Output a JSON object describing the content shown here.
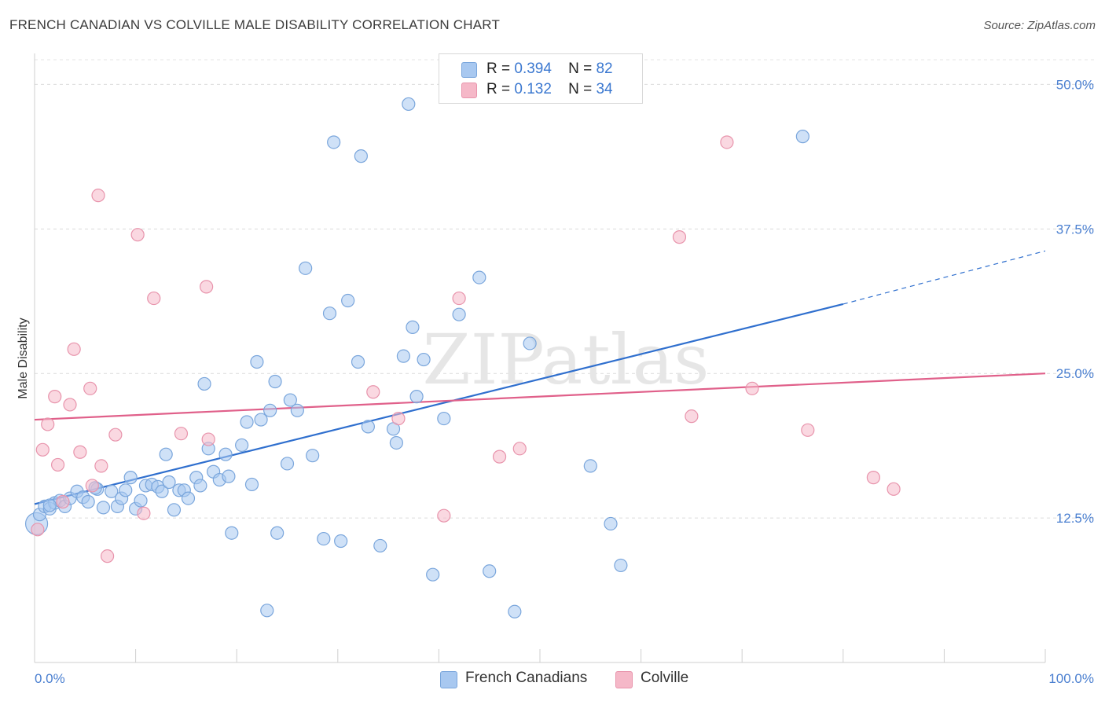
{
  "title": "FRENCH CANADIAN VS COLVILLE MALE DISABILITY CORRELATION CHART",
  "source": "Source: ZipAtlas.com",
  "watermark": "ZIPatlas",
  "legend": {
    "rows": [
      {
        "r_label": "R =",
        "r_value": "0.394",
        "n_label": "N =",
        "n_value": "82",
        "color": "#a8c8f0"
      },
      {
        "r_label": "R =",
        "r_value": " 0.132",
        "n_label": "N =",
        "n_value": "34",
        "color": "#f5b8c8"
      }
    ]
  },
  "bottom_legend": {
    "french": "French Canadians",
    "colville": "Colville"
  },
  "chart_data": {
    "type": "scatter",
    "title": "FRENCH CANADIAN VS COLVILLE MALE DISABILITY CORRELATION CHART",
    "xlabel": "",
    "ylabel": "Male Disability",
    "xlim": [
      0,
      100
    ],
    "ylim": [
      0,
      52
    ],
    "x_tick_labels": [
      "0.0%",
      "100.0%"
    ],
    "y_ticks": [
      12.5,
      25.0,
      37.5,
      50.0
    ],
    "y_tick_labels": [
      "12.5%",
      "25.0%",
      "37.5%",
      "50.0%"
    ],
    "grid": "horizontal dashed",
    "legend_placement": "top-center",
    "series": [
      {
        "name": "French Canadians",
        "color": "#a8c8f0",
        "stroke": "#7aa6dc",
        "trend": {
          "x0": 0,
          "y0": 13.7,
          "x1": 80,
          "y1": 31.0,
          "dashed_to_x": 100,
          "dashed_to_y": 35.6,
          "color": "#2f6fce"
        },
        "points": [
          [
            0.2,
            12.0
          ],
          [
            0.5,
            12.8
          ],
          [
            1.0,
            13.5
          ],
          [
            1.5,
            13.3
          ],
          [
            2.0,
            13.8
          ],
          [
            2.5,
            14.0
          ],
          [
            3.0,
            13.5
          ],
          [
            3.5,
            14.2
          ],
          [
            4.2,
            14.8
          ],
          [
            4.8,
            14.3
          ],
          [
            5.3,
            13.9
          ],
          [
            6.2,
            15.0
          ],
          [
            6.8,
            13.4
          ],
          [
            7.6,
            14.8
          ],
          [
            8.2,
            13.5
          ],
          [
            8.6,
            14.2
          ],
          [
            9.0,
            14.9
          ],
          [
            9.5,
            16.0
          ],
          [
            10.0,
            13.3
          ],
          [
            10.5,
            14.0
          ],
          [
            11.0,
            15.3
          ],
          [
            11.6,
            15.4
          ],
          [
            12.2,
            15.2
          ],
          [
            12.6,
            14.8
          ],
          [
            13.0,
            18.0
          ],
          [
            13.3,
            15.6
          ],
          [
            13.8,
            13.2
          ],
          [
            14.3,
            14.9
          ],
          [
            14.8,
            14.9
          ],
          [
            15.2,
            14.2
          ],
          [
            16.0,
            16.0
          ],
          [
            16.4,
            15.3
          ],
          [
            16.8,
            24.1
          ],
          [
            17.2,
            18.5
          ],
          [
            17.7,
            16.5
          ],
          [
            18.3,
            15.8
          ],
          [
            18.9,
            18.0
          ],
          [
            19.2,
            16.1
          ],
          [
            20.5,
            18.8
          ],
          [
            21.0,
            20.8
          ],
          [
            21.5,
            15.4
          ],
          [
            22.0,
            26.0
          ],
          [
            22.4,
            21.0
          ],
          [
            23.3,
            21.8
          ],
          [
            23.8,
            24.3
          ],
          [
            25.0,
            17.2
          ],
          [
            25.3,
            22.7
          ],
          [
            26.0,
            21.8
          ],
          [
            26.8,
            34.1
          ],
          [
            27.5,
            17.9
          ],
          [
            28.6,
            10.7
          ],
          [
            29.2,
            30.2
          ],
          [
            29.6,
            45.0
          ],
          [
            30.3,
            10.5
          ],
          [
            31.0,
            31.3
          ],
          [
            32.0,
            26.0
          ],
          [
            32.3,
            43.8
          ],
          [
            33.0,
            20.4
          ],
          [
            34.2,
            10.1
          ],
          [
            35.5,
            20.2
          ],
          [
            35.8,
            19.0
          ],
          [
            36.5,
            26.5
          ],
          [
            37.0,
            48.3
          ],
          [
            37.4,
            29.0
          ],
          [
            37.8,
            23.0
          ],
          [
            38.5,
            26.2
          ],
          [
            39.4,
            7.6
          ],
          [
            40.5,
            21.1
          ],
          [
            42.0,
            30.1
          ],
          [
            44.0,
            33.3
          ],
          [
            45.0,
            7.9
          ],
          [
            47.5,
            4.4
          ],
          [
            49.0,
            27.6
          ],
          [
            55.0,
            17.0
          ],
          [
            57.0,
            12.0
          ],
          [
            58.0,
            8.4
          ],
          [
            76.0,
            45.5
          ],
          [
            23.0,
            4.5
          ],
          [
            19.5,
            11.2
          ],
          [
            24.0,
            11.2
          ],
          [
            1.5,
            13.6
          ],
          [
            6.0,
            15.1
          ]
        ]
      },
      {
        "name": "Colville",
        "color": "#f5b8c8",
        "stroke": "#e894ac",
        "trend": {
          "x0": 0,
          "y0": 21.0,
          "x1": 100,
          "y1": 25.0,
          "color": "#e0608a"
        },
        "points": [
          [
            0.3,
            11.5
          ],
          [
            0.8,
            18.4
          ],
          [
            1.3,
            20.6
          ],
          [
            2.0,
            23.0
          ],
          [
            2.3,
            17.1
          ],
          [
            2.8,
            13.9
          ],
          [
            3.5,
            22.3
          ],
          [
            3.9,
            27.1
          ],
          [
            4.5,
            18.2
          ],
          [
            5.5,
            23.7
          ],
          [
            5.7,
            15.3
          ],
          [
            6.3,
            40.4
          ],
          [
            6.6,
            17.0
          ],
          [
            7.2,
            9.2
          ],
          [
            8.0,
            19.7
          ],
          [
            10.2,
            37.0
          ],
          [
            10.8,
            12.9
          ],
          [
            11.8,
            31.5
          ],
          [
            14.5,
            19.8
          ],
          [
            17.0,
            32.5
          ],
          [
            17.2,
            19.3
          ],
          [
            33.5,
            23.4
          ],
          [
            36.0,
            21.1
          ],
          [
            40.5,
            12.7
          ],
          [
            42.0,
            31.5
          ],
          [
            46.0,
            17.8
          ],
          [
            48.0,
            18.5
          ],
          [
            63.8,
            36.8
          ],
          [
            65.0,
            21.3
          ],
          [
            68.5,
            45.0
          ],
          [
            71.0,
            23.7
          ],
          [
            76.5,
            20.1
          ],
          [
            83.0,
            16.0
          ],
          [
            85.0,
            15.0
          ]
        ]
      }
    ]
  }
}
